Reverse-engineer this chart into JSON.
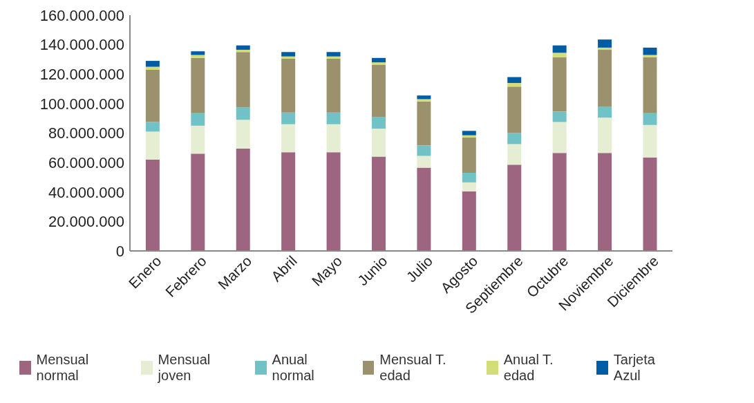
{
  "chart_data": {
    "type": "bar",
    "stacked": true,
    "categories": [
      "Enero",
      "Febrero",
      "Marzo",
      "Abril",
      "Mayo",
      "Junio",
      "Julio",
      "Agosto",
      "Septiembre",
      "Octubre",
      "Noviembre",
      "Diciembre"
    ],
    "series": [
      {
        "name": "Mensual normal",
        "color": "#9e6580",
        "values": [
          62000000,
          66000000,
          69500000,
          67000000,
          67000000,
          64000000,
          56500000,
          40500000,
          58500000,
          66500000,
          66500000,
          63500000
        ]
      },
      {
        "name": "Mensual joven",
        "color": "#e5eed3",
        "values": [
          19000000,
          19000000,
          19500000,
          19000000,
          19000000,
          19000000,
          8000000,
          6000000,
          14000000,
          21000000,
          24000000,
          22000000
        ]
      },
      {
        "name": "Anual normal",
        "color": "#70c2c6",
        "values": [
          6500000,
          8500000,
          8500000,
          8000000,
          8000000,
          8000000,
          7000000,
          6500000,
          7500000,
          7000000,
          7500000,
          8000000
        ]
      },
      {
        "name": "Mensual T. edad",
        "color": "#9b926d",
        "values": [
          35500000,
          37500000,
          37500000,
          36500000,
          36500000,
          35500000,
          30000000,
          24000000,
          31500000,
          37000000,
          38500000,
          38000000
        ]
      },
      {
        "name": "Anual T. edad",
        "color": "#d4de79",
        "values": [
          2000000,
          2000000,
          1500000,
          1500000,
          1500000,
          1500000,
          1500000,
          1500000,
          2500000,
          3000000,
          1500000,
          1500000
        ]
      },
      {
        "name": "Tarjeta Azul",
        "color": "#005ca4",
        "values": [
          4000000,
          2500000,
          3000000,
          3000000,
          3000000,
          3000000,
          2500000,
          3000000,
          4000000,
          5000000,
          5500000,
          5000000
        ]
      }
    ],
    "ylim": [
      0,
      160000000
    ],
    "yticks": [
      0,
      {
        "value": 20000000,
        "label": "20.000.000"
      },
      {
        "value": 40000000,
        "label": "40.000.000"
      },
      {
        "value": 60000000,
        "label": "60.000.000"
      },
      {
        "value": 80000000,
        "label": "80.000.000"
      },
      {
        "value": 100000000,
        "label": "100.000.000"
      },
      {
        "value": 120000000,
        "label": "120.000.000"
      },
      {
        "value": 140000000,
        "label": "140.000.000"
      },
      {
        "value": 160000000,
        "label": "160.000.000"
      }
    ],
    "grid": false,
    "legend": "bottom"
  }
}
